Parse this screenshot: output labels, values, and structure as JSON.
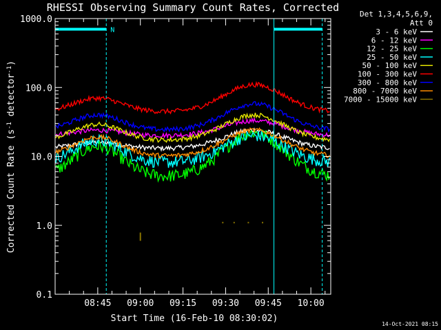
{
  "chart_data": {
    "type": "line",
    "title": "RHESSI Observing Summary Count Rates, Corrected",
    "xlabel": "Start Time (16-Feb-10 08:30:02)",
    "ylabel": "Corrected Count Rate (s⁻¹ detector⁻¹)",
    "ylabel_parts": {
      "main": "Corrected Count Rate (s",
      "sup1": "-1",
      "mid": " detector",
      "sup2": "-1",
      "end": ")"
    },
    "yscale": "log",
    "ylim": [
      0.1,
      1000
    ],
    "xlim": [
      "08:30",
      "10:07"
    ],
    "x_ticks": [
      "08:45",
      "09:00",
      "09:15",
      "09:30",
      "09:45",
      "10:00"
    ],
    "y_ticks": [
      "0.1",
      "1.0",
      "10.0",
      "100.0",
      "1000.0"
    ],
    "legend_header": [
      "Det 1,3,4,5,6,9,",
      "Att 0"
    ],
    "legend_position": "right",
    "series": [
      {
        "name": "3 - 6 keV",
        "color": "#ffffff",
        "base": 13,
        "peak1": 16,
        "peak2": 24
      },
      {
        "name": "6 - 12 keV",
        "color": "#ff00ff",
        "base": 20,
        "peak1": 24,
        "peak2": 33
      },
      {
        "name": "12 - 25 keV",
        "color": "#00ff00",
        "base": 5,
        "peak1": 14,
        "peak2": 22
      },
      {
        "name": "25 - 50 keV",
        "color": "#00ffff",
        "base": 8,
        "peak1": 17,
        "peak2": 20
      },
      {
        "name": "50 - 100 keV",
        "color": "#e6e600",
        "base": 17,
        "peak1": 29,
        "peak2": 40
      },
      {
        "name": "100 - 300 keV",
        "color": "#ff0000",
        "base": 44,
        "peak1": 70,
        "peak2": 110
      },
      {
        "name": "300 - 800 keV",
        "color": "#0000ff",
        "base": 24,
        "peak1": 40,
        "peak2": 58
      },
      {
        "name": "800 - 7000 keV",
        "color": "#ff8c00",
        "base": 10,
        "peak1": 19,
        "peak2": 24
      },
      {
        "name": "7000 - 15000 keV",
        "color": "#8b7500",
        "points": [
          [
            "09:00",
            0.7
          ],
          [
            "09:29",
            1.0
          ],
          [
            "09:33",
            1.0
          ],
          [
            "09:38",
            1.0
          ],
          [
            "09:43",
            1.0
          ]
        ]
      }
    ],
    "annotations": [
      {
        "label": "N",
        "color": "#00ffff",
        "time": "08:48",
        "y": 700
      }
    ],
    "vertical_markers": [
      {
        "time": "08:30",
        "style": "solid",
        "color": "#00ffff"
      },
      {
        "time": "08:48",
        "style": "dashed",
        "color": "#00ffff"
      },
      {
        "time": "09:47",
        "style": "solid",
        "color": "#00ffff"
      },
      {
        "time": "10:04",
        "style": "dashed",
        "color": "#00ffff"
      }
    ],
    "horizontal_markers": [
      {
        "from": "08:30",
        "to": "08:48",
        "y": 700,
        "color": "#00ffff"
      },
      {
        "from": "09:47",
        "to": "10:04",
        "y": 700,
        "color": "#00ffff"
      }
    ],
    "timestamp": "14-Oct-2021 08:15"
  }
}
